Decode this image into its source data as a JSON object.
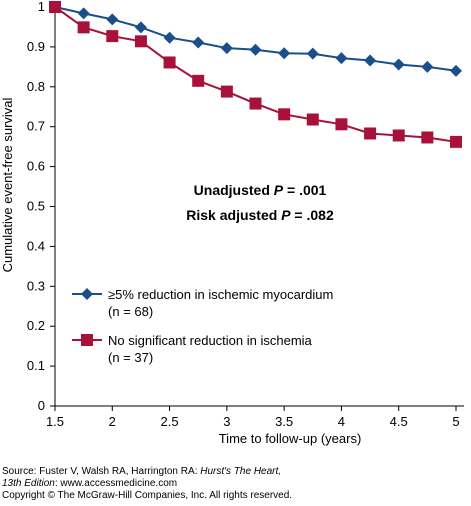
{
  "chart_data": {
    "type": "line",
    "title": "",
    "xlabel": "Time to follow-up (years)",
    "ylabel": "Cumulative event-free survival",
    "xlim": [
      1.5,
      5
    ],
    "ylim": [
      0,
      1
    ],
    "x_ticks": [
      "1.5",
      "2",
      "2.5",
      "3",
      "3.5",
      "4",
      "4.5",
      "5"
    ],
    "y_ticks": [
      "0",
      "0.1",
      "0.2",
      "0.3",
      "0.4",
      "0.5",
      "0.6",
      "0.7",
      "0.8",
      "0.9",
      "1"
    ],
    "grid": false,
    "series": [
      {
        "name": "≥5% reduction in ischemic myocardium",
        "n_label": "(n = 68)",
        "color": "#1a4f8a",
        "marker": "diamond",
        "x": [
          1.5,
          1.75,
          2.0,
          2.25,
          2.5,
          2.75,
          3.0,
          3.25,
          3.5,
          3.75,
          4.0,
          4.25,
          4.5,
          4.75,
          5.0
        ],
        "y": [
          1.0,
          0.984,
          0.969,
          0.949,
          0.923,
          0.911,
          0.897,
          0.893,
          0.884,
          0.883,
          0.872,
          0.866,
          0.856,
          0.85,
          0.84
        ]
      },
      {
        "name": "No significant reduction in ischemia",
        "n_label": "(n = 37)",
        "color": "#a8123a",
        "marker": "square",
        "x": [
          1.5,
          1.75,
          2.0,
          2.25,
          2.5,
          2.75,
          3.0,
          3.25,
          3.5,
          3.75,
          4.0,
          4.25,
          4.5,
          4.75,
          5.0
        ],
        "y": [
          1.0,
          0.949,
          0.927,
          0.914,
          0.861,
          0.815,
          0.788,
          0.758,
          0.731,
          0.718,
          0.706,
          0.683,
          0.678,
          0.673,
          0.662
        ]
      }
    ],
    "annotations": {
      "line1_prefix": "Unadjusted ",
      "line1_p": "P",
      "line1_suffix": " = .001",
      "line2_prefix": "Risk adjusted ",
      "line2_p": "P",
      "line2_suffix": " = .082"
    },
    "legend_position": "bottom-left"
  },
  "source": {
    "prefix": "Source: Fuster V, Walsh RA, Harrington RA: ",
    "book_title": "Hurst's The Heart,",
    "edition": "13th Edition",
    "url_part": ": www.accessmedicine.com",
    "copyright": "Copyright © The McGraw-Hill Companies, Inc. All rights reserved."
  }
}
